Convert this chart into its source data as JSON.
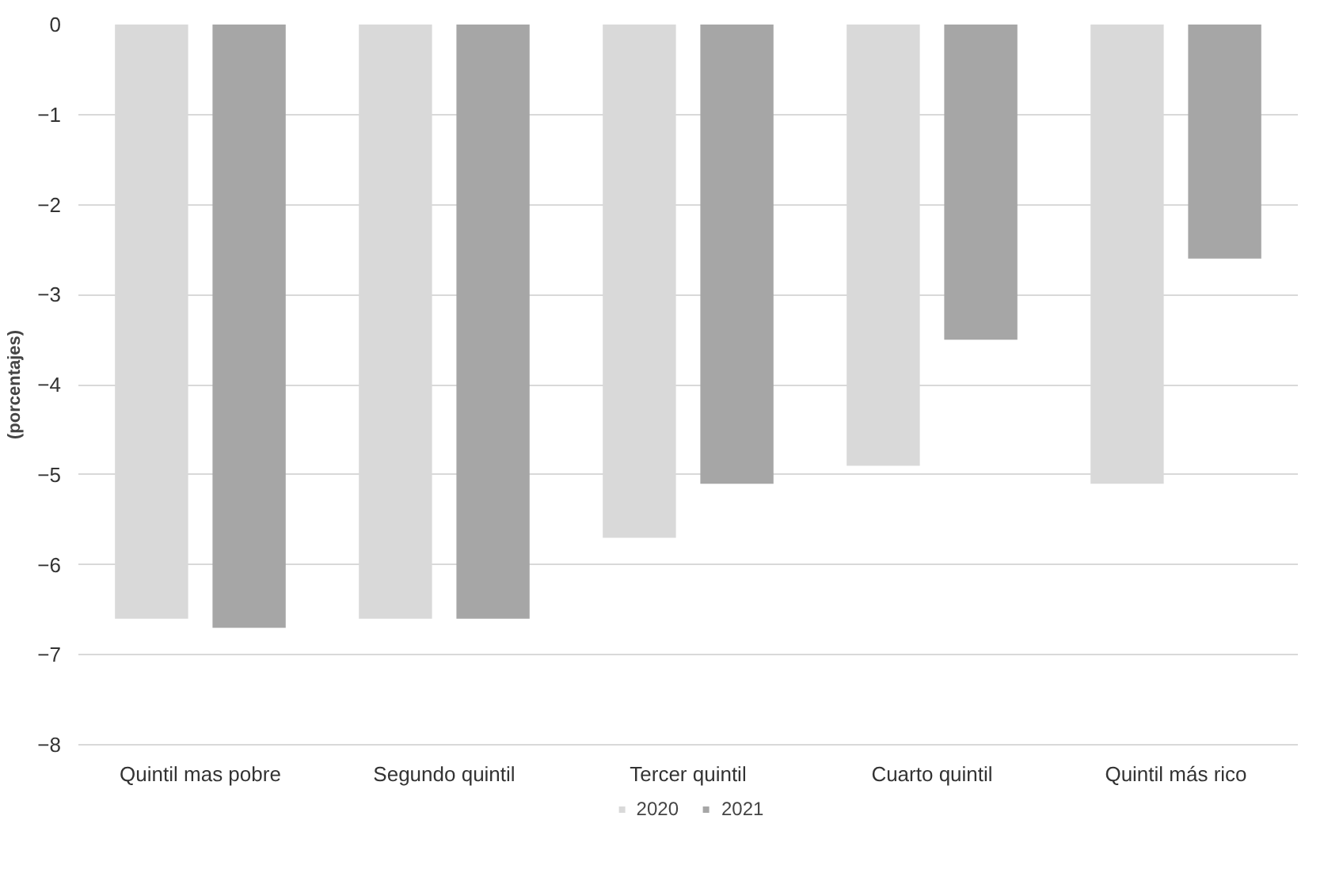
{
  "chart_data": {
    "type": "bar",
    "ylabel": "(porcentajes)",
    "categories": [
      "Quintil mas pobre",
      "Segundo quintil",
      "Tercer quintil",
      "Cuarto quintil",
      "Quintil más rico"
    ],
    "series": [
      {
        "name": "2020",
        "color": "#d9d9d9",
        "values": [
          -6.6,
          -6.6,
          -5.7,
          -4.9,
          -5.1
        ]
      },
      {
        "name": "2021",
        "color": "#a6a6a6",
        "values": [
          -6.7,
          -6.6,
          -5.1,
          -3.5,
          -2.6
        ]
      }
    ],
    "ylim": [
      -8,
      0
    ],
    "yticks": [
      -8,
      -7,
      -6,
      -5,
      -4,
      -3,
      -2,
      -1,
      0
    ],
    "grid": "y",
    "legend": "bottom"
  }
}
